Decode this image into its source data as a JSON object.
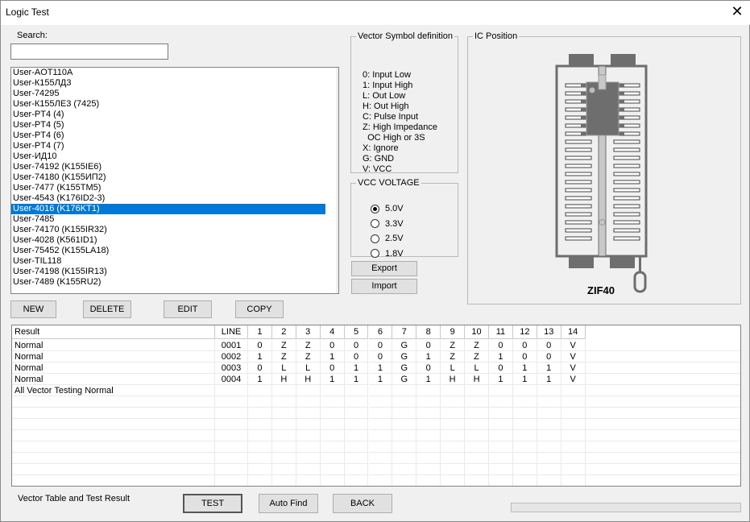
{
  "window": {
    "title": "Logic Test",
    "close_icon": "close-icon"
  },
  "search": {
    "label": "Search:",
    "value": "",
    "placeholder": ""
  },
  "device_list": {
    "items": [
      "User-AOT110A",
      "User-К155ЛД3",
      "User-74295",
      "User-К155ЛЕ3 (7425)",
      "User-PT4 (4)",
      "User-PT4 (5)",
      "User-PT4 (6)",
      "User-PT4 (7)",
      "User-ИД10",
      "User-74192 (K155IE6)",
      "User-74180 (K155ИП2)",
      "User-7477 (K155TM5)",
      "User-4543 (K176ID2-3)",
      "User-4016 (K176KT1)",
      "User-7485",
      "User-74170 (K155IR32)",
      "User-4028 (K561ID1)",
      "User-75452 (K155LA18)",
      "User-TIL118",
      "User-74198 (K155IR13)",
      "User-7489 (K155RU2)"
    ],
    "selected": "User-4016 (K176KT1)"
  },
  "list_buttons": {
    "new": "NEW",
    "delete": "DELETE",
    "edit": "EDIT",
    "copy": "COPY"
  },
  "vector_symbols": {
    "title": "Vector Symbol definition",
    "lines": [
      "0: Input Low",
      "1: Input High",
      "L: Out Low",
      "H: Out High",
      "C: Pulse Input",
      "Z: High Impedance",
      "  OC High or 3S",
      "X: Ignore",
      "G: GND",
      "V: VCC"
    ]
  },
  "vcc": {
    "title": "VCC VOLTAGE",
    "options": [
      "5.0V",
      "3.3V",
      "2.5V",
      "1.8V"
    ],
    "selected": "5.0V"
  },
  "io_buttons": {
    "export": "Export",
    "import": "Import"
  },
  "ic_position": {
    "title": "IC Position",
    "socket_label": "ZIF40",
    "ic_pins": 14
  },
  "table": {
    "columns": [
      "Result",
      "LINE",
      "1",
      "2",
      "3",
      "4",
      "5",
      "6",
      "7",
      "8",
      "9",
      "10",
      "11",
      "12",
      "13",
      "14"
    ],
    "rows": [
      [
        "Normal",
        "0001",
        "0",
        "Z",
        "Z",
        "0",
        "0",
        "0",
        "G",
        "0",
        "Z",
        "Z",
        "0",
        "0",
        "0",
        "V"
      ],
      [
        "Normal",
        "0002",
        "1",
        "Z",
        "Z",
        "1",
        "0",
        "0",
        "G",
        "1",
        "Z",
        "Z",
        "1",
        "0",
        "0",
        "V"
      ],
      [
        "Normal",
        "0003",
        "0",
        "L",
        "L",
        "0",
        "1",
        "1",
        "G",
        "0",
        "L",
        "L",
        "0",
        "1",
        "1",
        "V"
      ],
      [
        "Normal",
        "0004",
        "1",
        "H",
        "H",
        "1",
        "1",
        "1",
        "G",
        "1",
        "H",
        "H",
        "1",
        "1",
        "1",
        "V"
      ],
      [
        "All Vector Testing Normal",
        "",
        "",
        "",
        "",
        "",
        "",
        "",
        "",
        "",
        "",
        "",
        "",
        "",
        "",
        ""
      ]
    ]
  },
  "footer": {
    "label": "Vector Table and Test Result",
    "test": "TEST",
    "auto_find": "Auto Find",
    "back": "BACK",
    "progress": 0
  },
  "colors": {
    "selection": "#0078d7",
    "socket": "#6e6e6e"
  }
}
